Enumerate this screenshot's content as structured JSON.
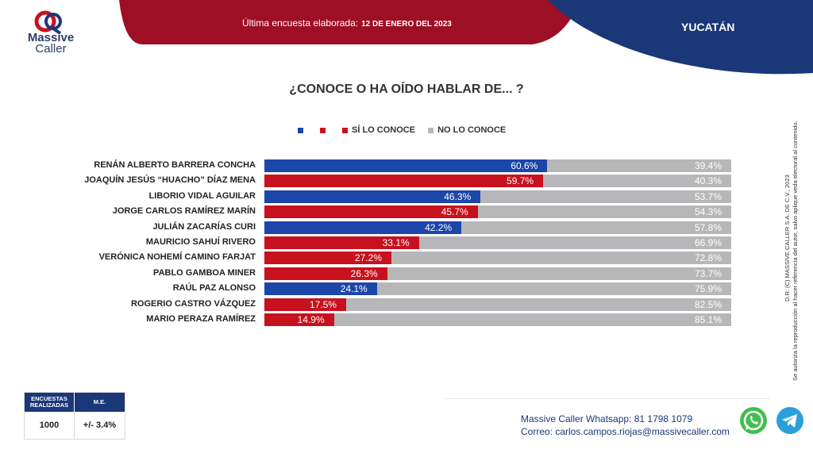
{
  "header": {
    "brand_line1": "Massive",
    "brand_line2": "Caller",
    "survey_label": "Última encuesta elaborada:",
    "survey_date": "12 DE ENERO DEL 2023",
    "region": "YUCATÁN"
  },
  "colors": {
    "blue": "#1c46a8",
    "red": "#c8111e",
    "gray": "#b7b7b9",
    "navy": "#1a3778",
    "dark_red": "#9e0e24"
  },
  "chart_data": {
    "type": "bar",
    "orientation": "horizontal-stacked-100",
    "title": "¿CONOCE O HA OÍDO HABLAR DE... ?",
    "legend": [
      {
        "label": "",
        "color": "#1c46a8"
      },
      {
        "label": "",
        "color": "#c8111e"
      },
      {
        "label": "SÍ LO CONOCE",
        "color": "#c8111e"
      },
      {
        "label": "NO LO CONOCE",
        "color": "#b7b7b9"
      }
    ],
    "categories": [
      "RENÁN ALBERTO BARRERA CONCHA",
      "JOAQUÍN JESÚS “HUACHO” DÍAZ MENA",
      "LIBORIO VIDAL AGUILAR",
      "JORGE CARLOS RAMÍREZ MARÍN",
      "JULIÁN ZACARÍAS CURI",
      "MAURICIO SAHUÍ RIVERO",
      "VERÓNICA NOHEMÍ CAMINO FARJAT",
      "PABLO GAMBOA MINER",
      "RAÚL PAZ ALONSO",
      "ROGERIO CASTRO VÁZQUEZ",
      "MARIO PERAZA RAMÍREZ"
    ],
    "bar_colors": [
      "blue",
      "red",
      "blue",
      "red",
      "blue",
      "red",
      "red",
      "red",
      "blue",
      "red",
      "red"
    ],
    "series": [
      {
        "name": "SÍ LO CONOCE",
        "values": [
          60.6,
          59.7,
          46.3,
          45.7,
          42.2,
          33.1,
          27.2,
          26.3,
          24.1,
          17.5,
          14.9
        ],
        "labels": [
          "60.6%",
          "59.7%",
          "46.3%",
          "45.7%",
          "42.2%",
          "33.1%",
          "27.2%",
          "26.3%",
          "24.1%",
          "17.5%",
          "14.9%"
        ]
      },
      {
        "name": "NO LO CONOCE",
        "values": [
          39.4,
          40.3,
          53.7,
          54.3,
          57.8,
          66.9,
          72.8,
          73.7,
          75.9,
          82.5,
          85.1
        ],
        "labels": [
          "39.4%",
          "40.3%",
          "53.7%",
          "54.3%",
          "57.8%",
          "66.9%",
          "72.8%",
          "73.7%",
          "75.9%",
          "82.5%",
          "85.1%"
        ]
      }
    ],
    "xlim": [
      0,
      100
    ]
  },
  "side_note": {
    "line1": "D.R. (C) MASSIVE CALLER S.A. DE C.V., 2023",
    "line2": "Se autoriza la reproducción al hacer referencia del autor, salvo aplique veda electoral al contenido."
  },
  "stats_table": {
    "col1_header": "ENCUESTAS REALIZADAS",
    "col2_header": "M.E.",
    "col1_value": "1000",
    "col2_value": "+/- 3.4%"
  },
  "contact": {
    "whatsapp_line": "Massive Caller Whatsapp: 81 1798 1079",
    "email_line": "Correo: carlos.campos.riojas@massivecaller.com"
  },
  "icons": {
    "whatsapp": "whatsapp-icon",
    "telegram": "telegram-icon",
    "logo": "massive-caller-logo-icon"
  }
}
